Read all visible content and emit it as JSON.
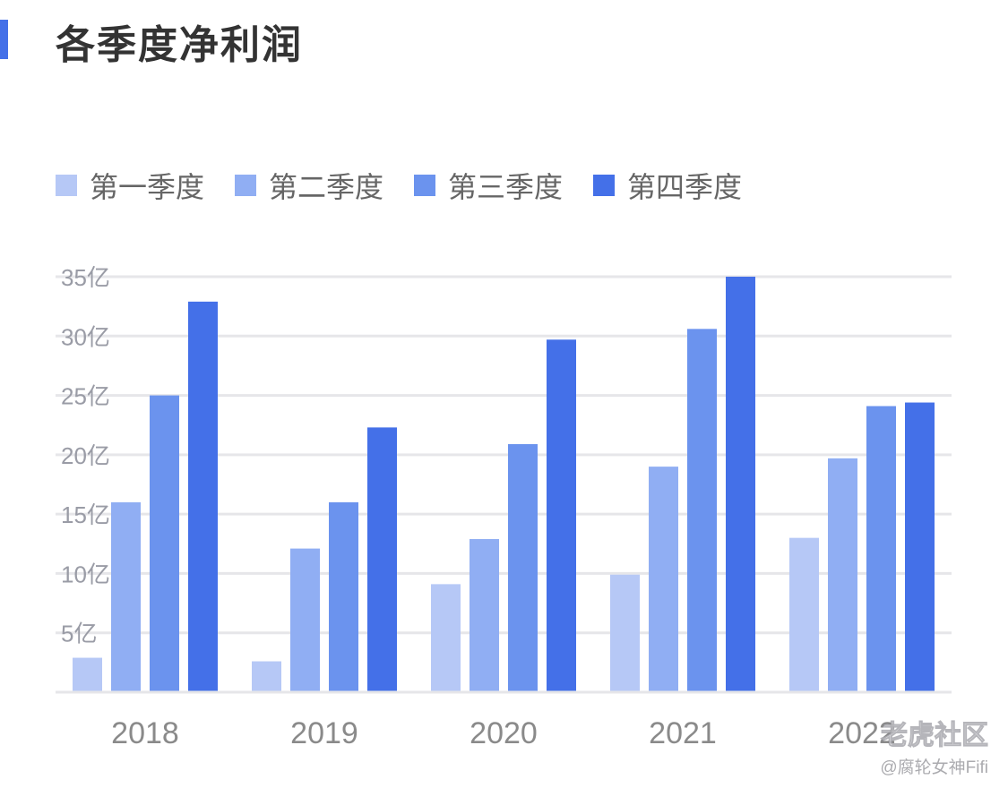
{
  "title": "各季度净利润",
  "colors": {
    "accent": "#4470E8",
    "series": [
      "#B6C8F6",
      "#90AEF3",
      "#6B93EE",
      "#4470E8"
    ],
    "grid": "#E6E6E9",
    "tick": "#9A9CA6",
    "category": "#8A8A8A"
  },
  "watermark": {
    "brand": "老虎社区",
    "author": "@腐轮女神Fifi"
  },
  "chart_data": {
    "type": "bar",
    "title": "各季度净利润",
    "categories": [
      "2018",
      "2019",
      "2020",
      "2021",
      "2022"
    ],
    "series": [
      {
        "name": "第一季度",
        "values": [
          2.9,
          2.6,
          9.1,
          9.9,
          13.0
        ]
      },
      {
        "name": "第二季度",
        "values": [
          16.0,
          12.1,
          12.9,
          19.0,
          19.7
        ]
      },
      {
        "name": "第三季度",
        "values": [
          25.0,
          16.0,
          20.9,
          30.6,
          24.1
        ]
      },
      {
        "name": "第四季度",
        "values": [
          32.9,
          22.3,
          29.7,
          35.0,
          24.4
        ]
      }
    ],
    "ylim": [
      0,
      35
    ],
    "yticks": [
      "5亿",
      "10亿",
      "15亿",
      "20亿",
      "25亿",
      "30亿",
      "35亿"
    ],
    "ytick_values": [
      5,
      10,
      15,
      20,
      25,
      30,
      35
    ],
    "xlabel": "",
    "ylabel": "",
    "grid": true,
    "legend_position": "top-left"
  }
}
